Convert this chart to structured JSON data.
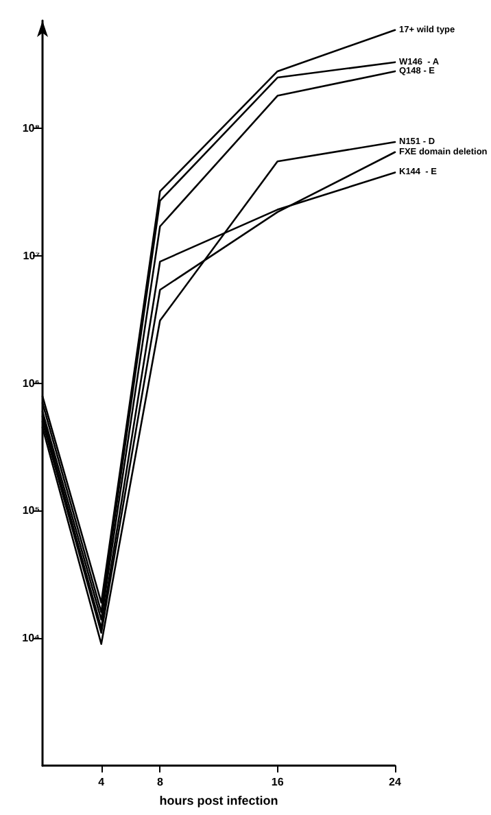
{
  "chart_data": {
    "type": "line",
    "xlabel": "hours post infection",
    "x": [
      0,
      4,
      8,
      16,
      24
    ],
    "series": [
      {
        "name": "17+ wild type",
        "color": "#000000",
        "values": [
          790000,
          19000,
          32000000,
          280000000,
          590000000
        ]
      },
      {
        "name": "W146  - A",
        "color": "#000000",
        "values": [
          700000,
          16000,
          27000000,
          250000000,
          330000000
        ]
      },
      {
        "name": "Q148 - E",
        "color": "#000000",
        "values": [
          600000,
          14000,
          17000000,
          180000000,
          280000000
        ]
      },
      {
        "name": "N151 - D",
        "color": "#000000",
        "values": [
          450000,
          9000,
          3100000,
          55000000,
          78000000
        ]
      },
      {
        "name": "FXE domain deletion",
        "color": "#000000",
        "values": [
          500000,
          11000,
          5400000,
          22000000,
          65000000
        ]
      },
      {
        "name": "K144  - E",
        "color": "#000000",
        "values": [
          550000,
          12000,
          9000000,
          23000000,
          45000000
        ]
      }
    ],
    "log": "y",
    "xlim": [
      0,
      24
    ],
    "xticks": [
      4,
      8,
      16,
      24
    ],
    "ylim": [
      1000,
      700000000
    ],
    "yticks": [
      {
        "value": 10000,
        "label": "10⁴"
      },
      {
        "value": 100000,
        "label": "10⁵"
      },
      {
        "value": 1000000,
        "label": "10⁶"
      },
      {
        "value": 10000000,
        "label": "10⁷"
      },
      {
        "value": 100000000,
        "label": "10⁸"
      }
    ],
    "grid": false,
    "legend": false,
    "marker": "none",
    "line_style": "solid"
  }
}
